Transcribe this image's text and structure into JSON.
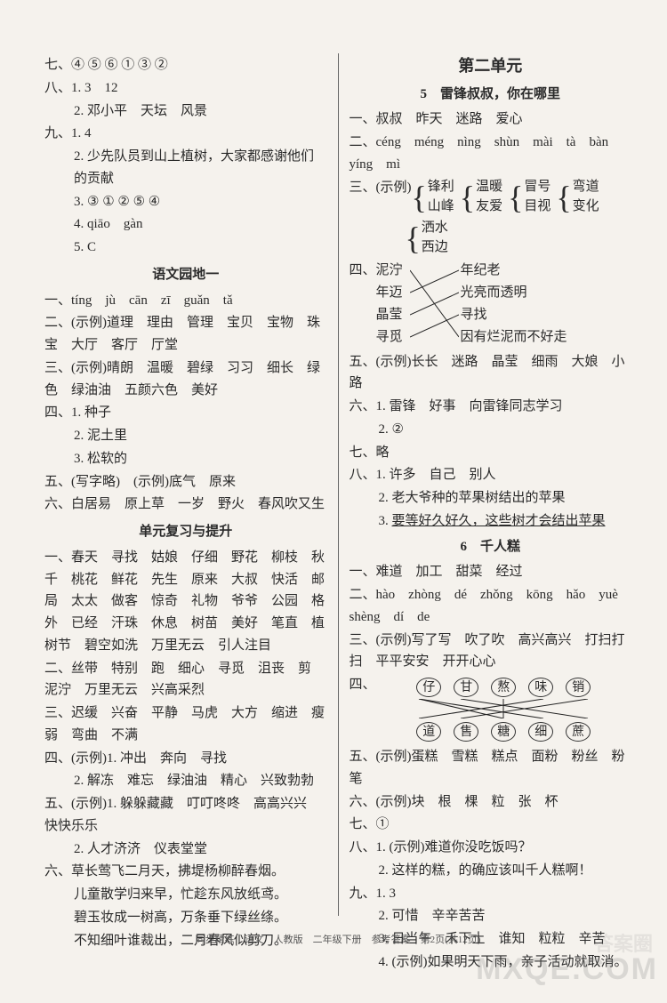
{
  "left": {
    "l1": "七、④ ⑤ ⑥ ① ③ ②",
    "l2": "八、1. 3　12",
    "l3": "2. 邓小平　天坛　风景",
    "l4": "九、1. 4",
    "l5": "2. 少先队员到山上植树，大家都感谢他们的贡献",
    "l6": "3. ③ ① ② ⑤ ④",
    "l7": "4. qiāo　gàn",
    "l8": "5. C",
    "h1": "语文园地一",
    "g1": "一、tíng　jù　cān　zī　guǎn　tǎ",
    "g2": "二、(示例)道理　理由　管理　宝贝　宝物　珠宝　大厅　客厅　厅堂",
    "g3": "三、(示例)晴朗　温暖　碧绿　习习　细长　绿色　绿油油　五颜六色　美好",
    "g4": "四、1. 种子",
    "g4b": "2. 泥土里",
    "g4c": "3. 松软的",
    "g5": "五、(写字略)　(示例)底气　原来",
    "g6": "六、白居易　原上草　一岁　野火　春风吹又生",
    "h2": "单元复习与提升",
    "r1": "一、春天　寻找　姑娘　仔细　野花　柳枝　秋千　桃花　鲜花　先生　原来　大叔　快活　邮局　太太　做客　惊奇　礼物　爷爷　公园　格外　已经　汗珠　休息　树苗　美好　笔直　植树节　碧空如洗　万里无云　引人注目",
    "r2": "二、丝带　特别　跑　细心　寻觅　沮丧　剪　泥泞　万里无云　兴高采烈",
    "r3": "三、迟缓　兴奋　平静　马虎　大方　缩进　瘦弱　弯曲　不满",
    "r4": "四、(示例)1. 冲出　奔向　寻找",
    "r4b": "2. 解冻　难忘　绿油油　精心　兴致勃勃",
    "r5": "五、(示例)1. 躲躲藏藏　叮叮咚咚　高高兴兴　快快乐乐",
    "r5b": "2. 人才济济　仪表堂堂",
    "r6a": "六、草长莺飞二月天，拂堤杨柳醉春烟。",
    "r6b": "儿童散学归来早，忙趁东风放纸鸢。",
    "r6c": "碧玉妆成一树高，万条垂下绿丝绦。",
    "r6d": "不知细叶谁裁出，二月春风似剪刀。"
  },
  "right": {
    "unit": "第二单元",
    "lesson5": "5　雷锋叔叔，你在哪里",
    "a1": "一、叔叔　昨天　迷路　爱心",
    "a2": "二、céng　méng　nìng　shùn　mài　tà　bàn　yíng　mì",
    "a3pre": "三、(示例)",
    "brace1a": "锋利",
    "brace1b": "山峰",
    "brace2a": "温暖",
    "brace2b": "友爱",
    "brace3a": "冒号",
    "brace3b": "目视",
    "brace4a": "弯道",
    "brace4b": "变化",
    "brace5a": "洒水",
    "brace5b": "西边",
    "a4pre": "四、",
    "pl1": "泥泞",
    "pr1": "年纪老",
    "pl2": "年迈",
    "pr2": "光亮而透明",
    "pl3": "晶莹",
    "pr3": "寻找",
    "pl4": "寻觅",
    "pr4": "因有烂泥而不好走",
    "a5": "五、(示例)长长　迷路　晶莹　细雨　大娘　小路",
    "a6": "六、1. 雷锋　好事　向雷锋同志学习",
    "a6b": "2. ②",
    "a7": "七、略",
    "a8": "八、1. 许多　自己　别人",
    "a8b": "2. 老大爷种的苹果树结出的苹果",
    "a8c_pre": "3. ",
    "a8c_u": "要等好久好久，这些树才会结出苹果",
    "lesson6": "6　千人糕",
    "b1": "一、难道　加工　甜菜　经过",
    "b2": "二、hào　zhòng　dé　zhǒng　kōng　hǎo　yuè　shèng　dí　de",
    "b3": "三、(示例)写了写　吹了吹　高兴高兴　打扫打扫　平平安安　开开心心",
    "b4pre": "四、",
    "bub_top": [
      "仔",
      "甘",
      "熬",
      "味",
      "销"
    ],
    "bub_bot": [
      "道",
      "售",
      "糖",
      "细",
      "蔗"
    ],
    "b5": "五、(示例)蛋糕　雪糕　糕点　面粉　粉丝　粉笔",
    "b6": "六、(示例)块　根　棵　粒　张　杯",
    "b7": "七、①",
    "b8": "八、1. (示例)难道你没吃饭吗？",
    "b8b": "2. 这样的糕，的确应该叫千人糕啊！",
    "b9": "九、1. 3",
    "b9b": "2. 可惜　辛辛苦苦",
    "b9c": "3. 日当午　禾下土　谁知　粒粒　辛苦",
    "b9d": "4. (示例)如果明天下雨，亲子活动就取消。"
  },
  "footer": "同步精练　语文　人教版　二年级下册　参考答案　第2页(共12页)",
  "wm1": "MXQE.COM",
  "wm2": "答案圈",
  "colors": {
    "text": "#2a2a2a",
    "bg": "#f5f2ed",
    "rule": "#666"
  }
}
